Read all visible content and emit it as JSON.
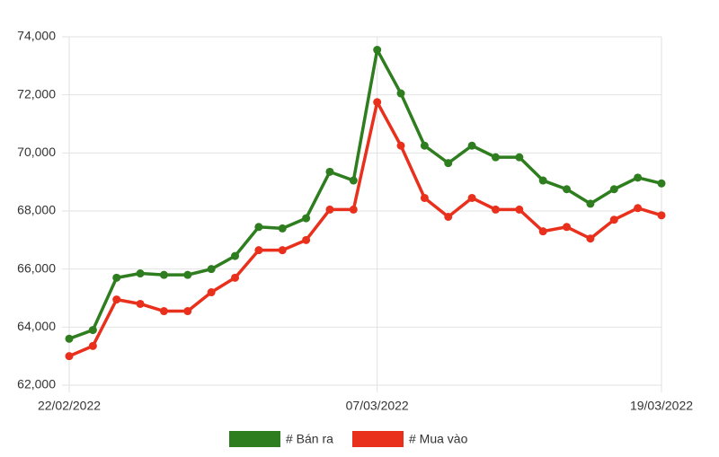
{
  "chart_data": {
    "type": "line",
    "categories": [
      "22/02/2022",
      null,
      null,
      null,
      null,
      null,
      null,
      null,
      null,
      null,
      null,
      null,
      null,
      "07/03/2022",
      null,
      null,
      null,
      null,
      null,
      null,
      null,
      null,
      null,
      null,
      null,
      "19/03/2022"
    ],
    "series": [
      {
        "name": "# Bán ra",
        "color": "#2e7d1e",
        "values": [
          63600,
          63900,
          65700,
          65850,
          65800,
          65800,
          66000,
          66450,
          67450,
          67400,
          67750,
          69350,
          69050,
          73550,
          72050,
          70250,
          69650,
          70250,
          69850,
          69850,
          69050,
          68750,
          68250,
          68750,
          69150,
          68950
        ]
      },
      {
        "name": "# Mua vào",
        "color": "#e8301c",
        "values": [
          63000,
          63350,
          64950,
          64800,
          64550,
          64550,
          65200,
          65700,
          66650,
          66650,
          67000,
          68050,
          68050,
          71750,
          70250,
          68450,
          67800,
          68450,
          68050,
          68050,
          67300,
          67450,
          67050,
          67700,
          68100,
          67850
        ]
      }
    ],
    "ylim": [
      62000,
      74000
    ],
    "yticks": [
      {
        "value": 62000,
        "label": "62,000"
      },
      {
        "value": 64000,
        "label": "64,000"
      },
      {
        "value": 66000,
        "label": "66,000"
      },
      {
        "value": 68000,
        "label": "68,000"
      },
      {
        "value": 70000,
        "label": "70,000"
      },
      {
        "value": 72000,
        "label": "72,000"
      },
      {
        "value": 74000,
        "label": "74,000"
      }
    ],
    "grid": true,
    "legend": "bottom"
  }
}
